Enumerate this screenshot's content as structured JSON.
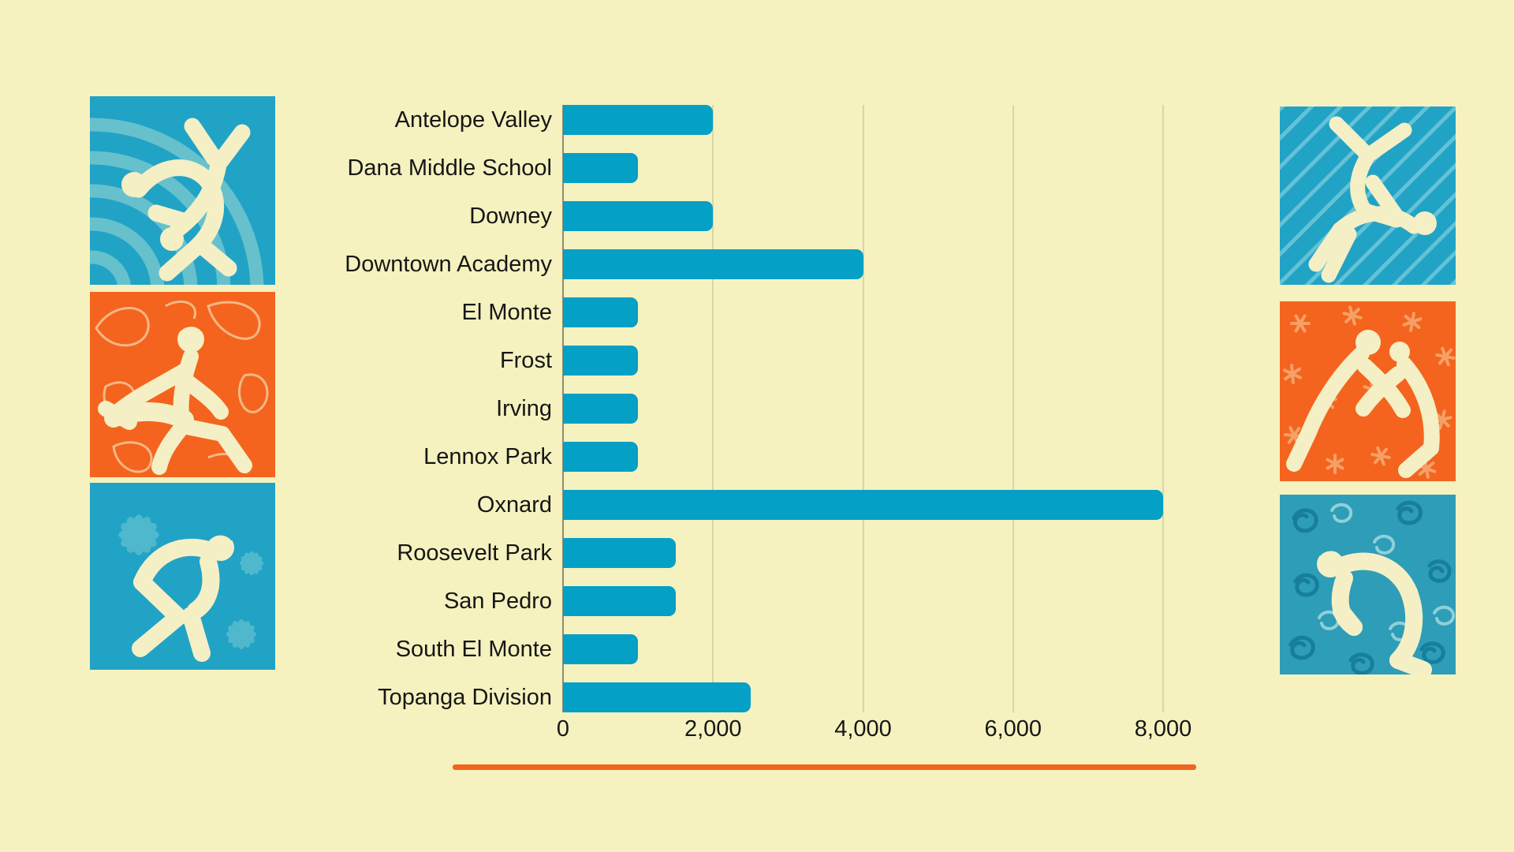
{
  "colors": {
    "background": "#F5F2BF",
    "bar": "#04A0C6",
    "axis_line": "#8E8C72",
    "gridline": "#D8D5AC",
    "text": "#161616",
    "divider": "#F2641F",
    "panel_blue": "#21A3C6",
    "panel_blue_light": "#73C7CF",
    "panel_orange": "#F4641E",
    "panel_orange_light": "#F6A066",
    "panel_teal": "#2E9DB7",
    "panel_teal_dark": "#177E9C",
    "panel_teal_light": "#8FD0D8",
    "figure_cream": "#F4EFC5"
  },
  "chart_data": {
    "type": "bar",
    "orientation": "horizontal",
    "title": "",
    "categories": [
      "Antelope Valley",
      "Dana Middle School",
      "Downey",
      "Downtown Academy",
      "El Monte",
      "Frost",
      "Irving",
      "Lennox Park",
      "Oxnard",
      "Roosevelt Park",
      "San Pedro",
      "South El Monte",
      "Topanga Division"
    ],
    "values": [
      2000,
      1000,
      2000,
      4000,
      1000,
      1000,
      1000,
      1000,
      8000,
      1500,
      1500,
      1000,
      2500
    ],
    "xlim": [
      0,
      8000
    ],
    "x_ticks": [
      {
        "value": 0,
        "label": "0"
      },
      {
        "value": 2000,
        "label": "2,000"
      },
      {
        "value": 4000,
        "label": "4,000"
      },
      {
        "value": 6000,
        "label": "6,000"
      },
      {
        "value": 8000,
        "label": "8,000"
      }
    ],
    "xlabel": "",
    "ylabel": "",
    "grid": "vertical",
    "legend": "none",
    "bar_color": "#04A0C6"
  },
  "illustrations": [
    {
      "position": "left-top",
      "background": "#21A3C6",
      "motif": "concentric-arcs",
      "subject": "two wrestlers, suplex throw"
    },
    {
      "position": "left-middle",
      "background": "#F4641E",
      "motif": "contour-squiggles",
      "subject": "wrestler with headgear taking down opponent"
    },
    {
      "position": "left-bottom",
      "background": "#21A3C6",
      "motif": "flowers",
      "subject": "crouching wrestler facing right"
    },
    {
      "position": "right-top",
      "background": "#21A3C6",
      "motif": "diagonal-stripes",
      "subject": "two wrestlers, pinning move"
    },
    {
      "position": "right-middle",
      "background": "#F4641E",
      "motif": "asterisks",
      "subject": "two wrestlers locking up"
    },
    {
      "position": "right-bottom",
      "background": "#2E9DB7",
      "motif": "spiral-squiggles",
      "subject": "crouching wrestler facing left"
    }
  ]
}
